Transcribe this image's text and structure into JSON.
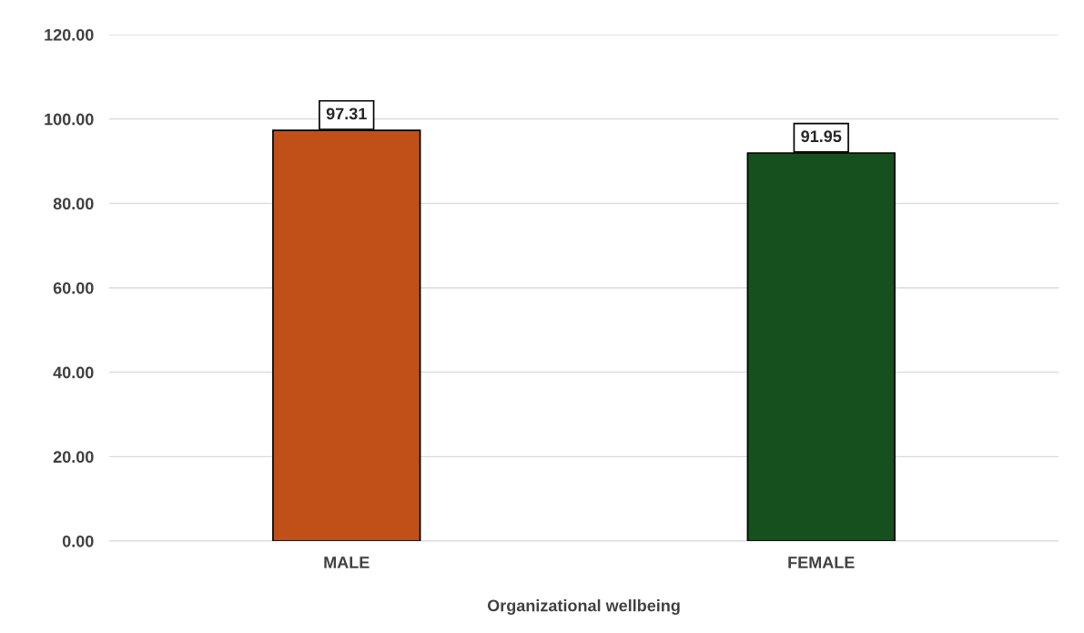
{
  "chart_data": {
    "type": "bar",
    "xlabel": "Organizational wellbeing",
    "categories": [
      "MALE",
      "FEMALE"
    ],
    "values": [
      97.31,
      91.95
    ],
    "colors": [
      "#c05018",
      "#16501e"
    ],
    "ylim": [
      0,
      120
    ],
    "yticks": [
      {
        "value": 0,
        "label": "0.00"
      },
      {
        "value": 20,
        "label": "20.00"
      },
      {
        "value": 40,
        "label": "40.00"
      },
      {
        "value": 60,
        "label": "60.00"
      },
      {
        "value": 80,
        "label": "80.00"
      },
      {
        "value": 100,
        "label": "100.00"
      },
      {
        "value": 120,
        "label": "120.00"
      }
    ],
    "grid": "y",
    "data_labels": true
  }
}
